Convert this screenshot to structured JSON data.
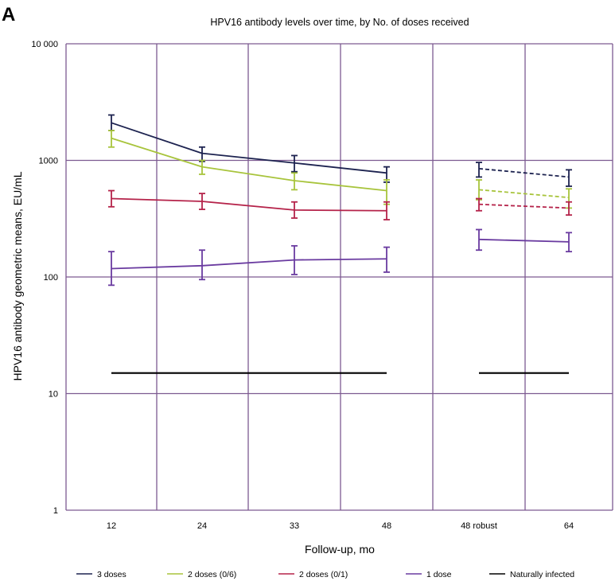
{
  "panel_label": "A",
  "chart_data": {
    "type": "line",
    "title": "HPV16 antibody levels over time, by No. of doses received",
    "xlabel": "Follow-up, mo",
    "ylabel": "HPV16 antibody geometric means, EU/mL",
    "yscale": "log",
    "ylim": [
      1,
      10000
    ],
    "y_ticks": [
      {
        "value": 1,
        "label": "1"
      },
      {
        "value": 10,
        "label": "10"
      },
      {
        "value": 100,
        "label": "100"
      },
      {
        "value": 1000,
        "label": "1000"
      },
      {
        "value": 10000,
        "label": "10 000"
      }
    ],
    "categories": [
      "12",
      "24",
      "33",
      "48",
      "48 robust",
      "64"
    ],
    "grid": true,
    "legend_position": "bottom",
    "colors": {
      "grid": "#7d5a91",
      "3 doses": "#1d2350",
      "2 doses (0/6)": "#a8c43c",
      "2 doses (0/1)": "#b5234a",
      "1 dose": "#6a3ba0",
      "Naturally infected": "#000000"
    },
    "series": [
      {
        "name": "3 doses",
        "key": "s3",
        "segments": [
          {
            "style": "solid",
            "x": [
              "12",
              "24",
              "33",
              "48"
            ],
            "values": [
              2100,
              1150,
              950,
              780
            ],
            "lower": [
              1800,
              980,
              800,
              650
            ],
            "upper": [
              2450,
              1300,
              1100,
              880
            ]
          },
          {
            "style": "dashed",
            "x": [
              "48 robust",
              "64"
            ],
            "values": [
              850,
              720
            ],
            "lower": [
              720,
              600
            ],
            "upper": [
              960,
              830
            ]
          }
        ]
      },
      {
        "name": "2 doses (0/6)",
        "key": "s26",
        "segments": [
          {
            "style": "solid",
            "x": [
              "12",
              "24",
              "33",
              "48"
            ],
            "values": [
              1550,
              880,
              670,
              550
            ],
            "lower": [
              1300,
              760,
              560,
              420
            ],
            "upper": [
              1800,
              1000,
              780,
              680
            ]
          },
          {
            "style": "dashed",
            "x": [
              "48 robust",
              "64"
            ],
            "values": [
              560,
              480
            ],
            "lower": [
              460,
              390
            ],
            "upper": [
              680,
              570
            ]
          }
        ]
      },
      {
        "name": "2 doses (0/1)",
        "key": "s21",
        "segments": [
          {
            "style": "solid",
            "x": [
              "12",
              "24",
              "33",
              "48"
            ],
            "values": [
              470,
              445,
              375,
              370
            ],
            "lower": [
              400,
              380,
              320,
              310
            ],
            "upper": [
              550,
              520,
              440,
              440
            ]
          },
          {
            "style": "dashed",
            "x": [
              "48 robust",
              "64"
            ],
            "values": [
              420,
              390
            ],
            "lower": [
              370,
              340
            ],
            "upper": [
              470,
              440
            ]
          }
        ]
      },
      {
        "name": "1 dose",
        "key": "s1",
        "segments": [
          {
            "style": "solid",
            "x": [
              "12",
              "24",
              "33",
              "48"
            ],
            "values": [
              118,
              125,
              140,
              143
            ],
            "lower": [
              85,
              95,
              105,
              110
            ],
            "upper": [
              165,
              170,
              185,
              180
            ]
          },
          {
            "style": "solid",
            "x": [
              "48 robust",
              "64"
            ],
            "values": [
              210,
              200
            ],
            "lower": [
              170,
              165
            ],
            "upper": [
              255,
              240
            ]
          }
        ]
      },
      {
        "name": "Naturally infected",
        "key": "nat",
        "segments": [
          {
            "style": "solid",
            "x": [
              "12",
              "24",
              "33",
              "48"
            ],
            "values": [
              15,
              15,
              15,
              15
            ]
          },
          {
            "style": "solid",
            "x": [
              "48 robust",
              "64"
            ],
            "values": [
              15,
              15
            ]
          }
        ]
      }
    ],
    "legend": [
      {
        "label": "3 doses",
        "key": "s3"
      },
      {
        "label": "2 doses (0/6)",
        "key": "s26"
      },
      {
        "label": "2 doses (0/1)",
        "key": "s21"
      },
      {
        "label": "1 dose",
        "key": "s1"
      },
      {
        "label": "Naturally infected",
        "key": "nat"
      }
    ]
  }
}
